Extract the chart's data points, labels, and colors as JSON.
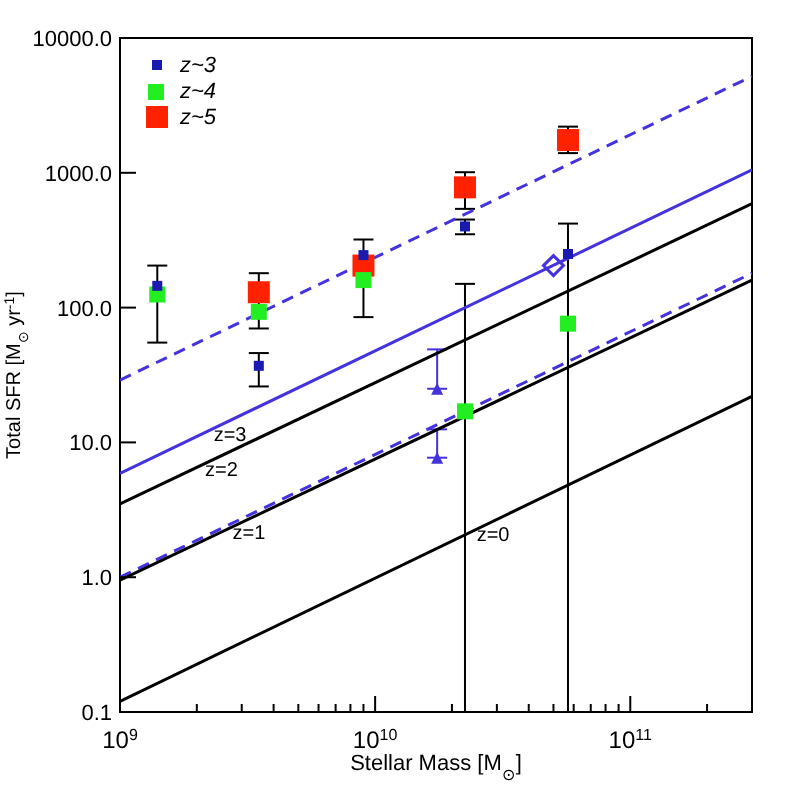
{
  "chart_data": {
    "type": "scatter",
    "xlabel": "Stellar Mass [M$_{⊙}$]",
    "ylabel": "Total SFR [M$_{⊙}$ yr$^{-1}$]",
    "log": "xy",
    "grid": false,
    "legend": "top left",
    "xlim": [
      1000000000.0,
      300000000000.0
    ],
    "ylim": [
      0.1,
      10000
    ],
    "xticks": [
      {
        "value": 1000000000.0,
        "label": "10$^{9}$"
      },
      {
        "value": 2000000000.0,
        "label": null
      },
      {
        "value": 3000000000.0,
        "label": null
      },
      {
        "value": 4000000000.0,
        "label": null
      },
      {
        "value": 5000000000.0,
        "label": null
      },
      {
        "value": 6000000000.0,
        "label": null
      },
      {
        "value": 7000000000.0,
        "label": null
      },
      {
        "value": 8000000000.0,
        "label": null
      },
      {
        "value": 9000000000.0,
        "label": null
      },
      {
        "value": 10000000000.0,
        "label": "10$^{10}$"
      },
      {
        "value": 20000000000.0,
        "label": null
      },
      {
        "value": 30000000000.0,
        "label": null
      },
      {
        "value": 40000000000.0,
        "label": null
      },
      {
        "value": 50000000000.0,
        "label": null
      },
      {
        "value": 60000000000.0,
        "label": null
      },
      {
        "value": 70000000000.0,
        "label": null
      },
      {
        "value": 80000000000.0,
        "label": null
      },
      {
        "value": 90000000000.0,
        "label": null
      },
      {
        "value": 100000000000.0,
        "label": "10$^{11}$"
      },
      {
        "value": 200000000000.0,
        "label": null
      },
      {
        "value": 300000000000.0,
        "label": null
      }
    ],
    "yticks": [
      {
        "value": 0.1,
        "label": "0.1"
      },
      {
        "value": 1,
        "label": "1.0"
      },
      {
        "value": 10,
        "label": "10.0"
      },
      {
        "value": 100,
        "label": "100.0"
      },
      {
        "value": 1000,
        "label": "1000.0"
      },
      {
        "value": 10000,
        "label": "10000.0"
      }
    ],
    "annotations": [
      {
        "text": "z=3",
        "x": 2700000000.0,
        "y": 14.5
      },
      {
        "text": "z=2",
        "x": 2500000000.0,
        "y": 8.0
      },
      {
        "text": "z=1",
        "x": 3200000000.0,
        "y": 2.7
      },
      {
        "text": "z=0",
        "x": 29000000000.0,
        "y": 2.6
      }
    ],
    "series": [
      {
        "type": "line",
        "color": "#4433dd",
        "line_style": "dashed",
        "marker": "none",
        "x": [
          1000000000.0,
          300000000000.0
        ],
        "values": [
          29,
          5200
        ]
      },
      {
        "type": "line",
        "color": "#4433dd",
        "line_style": "solid",
        "marker": "none",
        "x": [
          1000000000.0,
          300000000000.0
        ],
        "values": [
          5.9,
          1050
        ]
      },
      {
        "type": "line",
        "color": "#000000",
        "line_style": "solid",
        "marker": "none",
        "x": [
          1000000000.0,
          300000000000.0
        ],
        "values": [
          3.5,
          590
        ]
      },
      {
        "type": "line",
        "color": "#4433dd",
        "line_style": "dashed",
        "marker": "none",
        "x": [
          1000000000.0,
          300000000000.0
        ],
        "values": [
          1.0,
          180
        ]
      },
      {
        "type": "line",
        "color": "#000000",
        "line_style": "solid",
        "marker": "none",
        "x": [
          1000000000.0,
          300000000000.0
        ],
        "values": [
          0.95,
          160
        ]
      },
      {
        "type": "line",
        "color": "#000000",
        "line_style": "solid",
        "marker": "none",
        "x": [
          1000000000.0,
          300000000000.0
        ],
        "values": [
          0.12,
          22
        ]
      },
      {
        "type": "scatter",
        "color": "#4433dd",
        "marker": "triangle",
        "x": [
          17500000000.0,
          17500000000.0
        ],
        "values": [
          25,
          7.7
        ],
        "errors": [
          [
            25,
            49
          ],
          [
            7.7,
            12.5
          ]
        ]
      },
      {
        "type": "scatter",
        "color": "#4433dd",
        "marker": "diamond",
        "x": [
          50000000000.0
        ],
        "values": [
          205
        ]
      },
      {
        "name": "z~3",
        "type": "scatter",
        "color": "#1a1ab0",
        "marker": "square",
        "x": [
          1400000000.0,
          3500000000.0,
          9000000000.0,
          22500000000.0,
          57000000000.0
        ],
        "values": [
          145,
          37,
          245,
          400,
          250
        ],
        "errors": [
          [
            55,
            205
          ],
          [
            26,
            46
          ],
          [
            85,
            320
          ],
          [
            350,
            450
          ],
          null
        ]
      },
      {
        "name": "z~4",
        "type": "scatter",
        "color": "#22ee22",
        "marker": "square",
        "x": [
          1400000000.0,
          3500000000.0,
          9000000000.0,
          22500000000.0,
          57000000000.0
        ],
        "values": [
          125,
          93,
          160,
          17,
          76
        ],
        "errors": [
          null,
          null,
          null,
          [
            0.1,
            150
          ],
          [
            0.1,
            420
          ]
        ]
      },
      {
        "name": "z~5",
        "type": "scatter",
        "color": "#ff2200",
        "marker": "square",
        "x": [
          3500000000.0,
          9000000000.0,
          22500000000.0,
          57000000000.0
        ],
        "values": [
          130,
          205,
          780,
          1750
        ],
        "errors": [
          [
            70,
            180
          ],
          null,
          [
            540,
            1010
          ],
          [
            1400,
            2200
          ]
        ]
      }
    ]
  }
}
